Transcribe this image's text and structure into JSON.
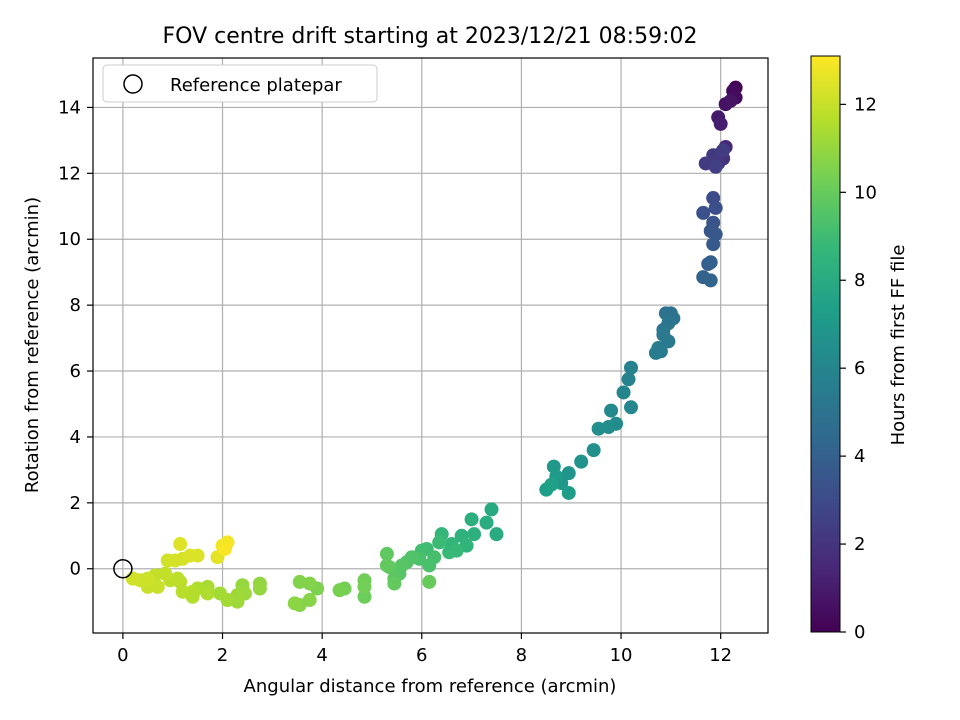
{
  "chart_data": {
    "type": "scatter",
    "title": "FOV centre drift starting at 2023/12/21 08:59:02",
    "xlabel": "Angular distance from reference (arcmin)",
    "ylabel": "Rotation from reference (arcmin)",
    "xlim": [
      -0.6,
      12.95
    ],
    "ylim": [
      -1.95,
      15.5
    ],
    "xticks": [
      0,
      2,
      4,
      6,
      8,
      10,
      12
    ],
    "yticks": [
      0,
      2,
      4,
      6,
      8,
      10,
      12,
      14
    ],
    "grid": true,
    "legend": {
      "placement": "top-left",
      "entries": [
        "Reference platepar"
      ]
    },
    "reference_point": {
      "x": 0,
      "y": 0
    },
    "colorbar": {
      "label": "Hours from first FF file",
      "colormap": "viridis",
      "range": [
        0,
        13.1
      ],
      "ticks": [
        0,
        2,
        4,
        6,
        8,
        10,
        12
      ]
    },
    "colormap_stops": [
      "#440154",
      "#482878",
      "#3e4989",
      "#31688e",
      "#26828e",
      "#1f9e89",
      "#35b779",
      "#6ece58",
      "#b5de2b",
      "#fde725"
    ],
    "points": [
      [
        12.3,
        14.6,
        0.1
      ],
      [
        12.25,
        14.5,
        0.3
      ],
      [
        12.3,
        14.3,
        0.4
      ],
      [
        12.1,
        14.1,
        0.6
      ],
      [
        12.2,
        14.2,
        0.7
      ],
      [
        11.95,
        13.7,
        0.9
      ],
      [
        12.0,
        13.5,
        1.1
      ],
      [
        12.1,
        12.8,
        1.5
      ],
      [
        12.0,
        12.6,
        1.7
      ],
      [
        12.05,
        12.45,
        1.9
      ],
      [
        11.95,
        12.3,
        2.1
      ],
      [
        11.85,
        12.55,
        2.2
      ],
      [
        11.7,
        12.3,
        2.3
      ],
      [
        12.05,
        12.7,
        2.4
      ],
      [
        11.9,
        12.2,
        2.5
      ],
      [
        11.85,
        11.25,
        3.0
      ],
      [
        11.9,
        10.95,
        3.2
      ],
      [
        11.65,
        10.8,
        3.3
      ],
      [
        11.85,
        10.5,
        3.4
      ],
      [
        11.8,
        10.25,
        3.5
      ],
      [
        11.9,
        10.15,
        3.6
      ],
      [
        11.85,
        9.85,
        3.7
      ],
      [
        11.75,
        9.25,
        3.9
      ],
      [
        11.8,
        9.3,
        4.0
      ],
      [
        11.65,
        8.85,
        4.1
      ],
      [
        11.8,
        8.75,
        4.2
      ],
      [
        11.0,
        7.75,
        4.8
      ],
      [
        10.9,
        7.75,
        4.9
      ],
      [
        11.05,
        7.6,
        5.0
      ],
      [
        10.95,
        7.45,
        5.1
      ],
      [
        10.85,
        7.25,
        5.2
      ],
      [
        10.85,
        7.1,
        5.3
      ],
      [
        10.95,
        6.9,
        5.3
      ],
      [
        10.8,
        6.6,
        5.4
      ],
      [
        10.7,
        6.55,
        5.5
      ],
      [
        10.75,
        6.7,
        5.5
      ],
      [
        10.2,
        6.1,
        5.8
      ],
      [
        10.15,
        5.75,
        5.9
      ],
      [
        10.05,
        5.35,
        6.0
      ],
      [
        10.2,
        4.9,
        6.1
      ],
      [
        9.8,
        4.8,
        6.2
      ],
      [
        9.9,
        4.4,
        6.3
      ],
      [
        9.75,
        4.3,
        6.4
      ],
      [
        9.55,
        4.25,
        6.5
      ],
      [
        9.45,
        3.6,
        6.6
      ],
      [
        9.2,
        3.25,
        6.7
      ],
      [
        8.95,
        2.9,
        6.8
      ],
      [
        8.8,
        2.6,
        6.9
      ],
      [
        8.65,
        3.1,
        7.0
      ],
      [
        8.7,
        2.8,
        7.1
      ],
      [
        8.95,
        2.3,
        7.2
      ],
      [
        8.5,
        2.4,
        7.3
      ],
      [
        8.6,
        2.55,
        7.4
      ],
      [
        7.4,
        1.8,
        7.9
      ],
      [
        7.5,
        1.05,
        8.0
      ],
      [
        7.3,
        1.4,
        8.1
      ],
      [
        7.0,
        1.5,
        8.2
      ],
      [
        7.05,
        1.05,
        8.3
      ],
      [
        6.8,
        1.0,
        8.4
      ],
      [
        6.9,
        0.7,
        8.5
      ],
      [
        6.6,
        0.75,
        8.6
      ],
      [
        6.4,
        1.05,
        8.7
      ],
      [
        6.7,
        0.55,
        8.8
      ],
      [
        6.55,
        0.5,
        8.8
      ],
      [
        6.35,
        0.8,
        8.9
      ],
      [
        6.1,
        0.6,
        9.0
      ],
      [
        6.0,
        0.55,
        9.1
      ],
      [
        6.25,
        0.35,
        9.2
      ],
      [
        6.15,
        0.1,
        9.3
      ],
      [
        5.95,
        0.3,
        9.3
      ],
      [
        5.8,
        0.35,
        9.4
      ],
      [
        5.7,
        0.2,
        9.5
      ],
      [
        5.6,
        0.1,
        9.6
      ],
      [
        5.55,
        -0.15,
        9.6
      ],
      [
        5.45,
        -0.3,
        9.7
      ],
      [
        5.35,
        0.05,
        9.8
      ],
      [
        5.3,
        0.45,
        9.8
      ],
      [
        5.3,
        0.1,
        9.9
      ],
      [
        5.45,
        -0.45,
        9.9
      ],
      [
        6.15,
        -0.4,
        10.0
      ],
      [
        4.85,
        -0.85,
        10.1
      ],
      [
        4.85,
        -0.35,
        10.2
      ],
      [
        4.85,
        -0.55,
        10.3
      ],
      [
        4.45,
        -0.6,
        10.3
      ],
      [
        4.35,
        -0.65,
        10.4
      ],
      [
        3.9,
        -0.6,
        10.5
      ],
      [
        3.75,
        -0.45,
        10.6
      ],
      [
        3.55,
        -0.4,
        10.6
      ],
      [
        3.75,
        -0.95,
        10.7
      ],
      [
        3.55,
        -1.1,
        10.7
      ],
      [
        3.45,
        -1.05,
        10.8
      ],
      [
        2.75,
        -0.45,
        10.9
      ],
      [
        2.75,
        -0.6,
        11.0
      ],
      [
        2.4,
        -0.5,
        11.0
      ],
      [
        2.45,
        -0.75,
        11.1
      ],
      [
        2.3,
        -0.8,
        11.2
      ],
      [
        2.3,
        -1.0,
        11.2
      ],
      [
        2.1,
        -0.95,
        11.3
      ],
      [
        1.95,
        -0.75,
        11.3
      ],
      [
        1.7,
        -0.55,
        11.4
      ],
      [
        1.7,
        -0.75,
        11.5
      ],
      [
        1.5,
        -0.6,
        11.5
      ],
      [
        1.4,
        -0.7,
        11.6
      ],
      [
        1.4,
        -0.85,
        11.6
      ],
      [
        1.2,
        -0.7,
        11.7
      ],
      [
        1.15,
        -0.4,
        11.7
      ],
      [
        1.1,
        -0.3,
        11.8
      ],
      [
        0.95,
        -0.35,
        11.8
      ],
      [
        0.85,
        -0.15,
        11.9
      ],
      [
        0.65,
        -0.2,
        11.9
      ],
      [
        0.7,
        -0.55,
        12.0
      ],
      [
        0.5,
        -0.55,
        12.0
      ],
      [
        0.5,
        -0.3,
        12.1
      ],
      [
        0.35,
        -0.35,
        12.1
      ],
      [
        0.2,
        -0.3,
        12.2
      ],
      [
        0.9,
        0.25,
        12.2
      ],
      [
        1.05,
        0.25,
        12.3
      ],
      [
        1.2,
        0.3,
        12.3
      ],
      [
        1.35,
        0.4,
        12.4
      ],
      [
        1.5,
        0.4,
        12.4
      ],
      [
        1.15,
        0.75,
        12.5
      ],
      [
        1.9,
        0.35,
        12.6
      ],
      [
        2.0,
        0.7,
        12.8
      ],
      [
        2.1,
        0.8,
        12.9
      ],
      [
        2.05,
        0.6,
        13.0
      ]
    ]
  }
}
